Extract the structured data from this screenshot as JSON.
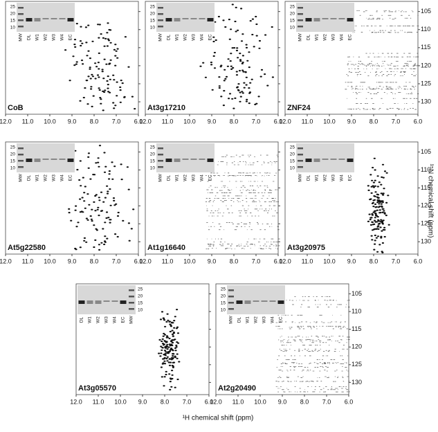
{
  "panels": [
    {
      "name": "CoB",
      "lanes": [
        "MW",
        "DL",
        "W1",
        "W2",
        "W3",
        "W4",
        "EC"
      ]
    },
    {
      "name": "At3g17210",
      "lanes": [
        "MW",
        "DL",
        "W1",
        "W2",
        "W3",
        "W4",
        "EC"
      ]
    },
    {
      "name": "ZNF24",
      "lanes": [
        "MW",
        "DL",
        "W1",
        "W2",
        "W3",
        "W4",
        "EC"
      ]
    },
    {
      "name": "At5g22580",
      "lanes": [
        "MW",
        "DL",
        "W1",
        "W2",
        "W3",
        "W4",
        "EC"
      ]
    },
    {
      "name": "At1g16640",
      "lanes": [
        "MW",
        "DL",
        "W1",
        "W2",
        "W3",
        "W4",
        "EC"
      ]
    },
    {
      "name": "At3g20975",
      "lanes": [
        "MW",
        "DL",
        "W1",
        "W2",
        "W3",
        "W4",
        "EC"
      ]
    },
    {
      "name": "At3g05570",
      "lanes": [
        "DL",
        "W1",
        "W2",
        "W3",
        "W4",
        "EC",
        "MW"
      ]
    },
    {
      "name": "At2g20490",
      "lanes": [
        "MW",
        "DL",
        "W1",
        "W2",
        "W3",
        "W4",
        "EC"
      ]
    }
  ],
  "gel_markers": [
    "25",
    "20",
    "15",
    "10"
  ],
  "x_ticks": [
    "12.0",
    "11.0",
    "10.0",
    "9.0",
    "8.0",
    "7.0",
    "6.0"
  ],
  "y_ticks": [
    "105",
    "110",
    "115",
    "120",
    "125",
    "130"
  ],
  "x_title": "¹H chemical shift (ppm)",
  "y_title": "¹⁵N chemical shift (ppm)"
}
